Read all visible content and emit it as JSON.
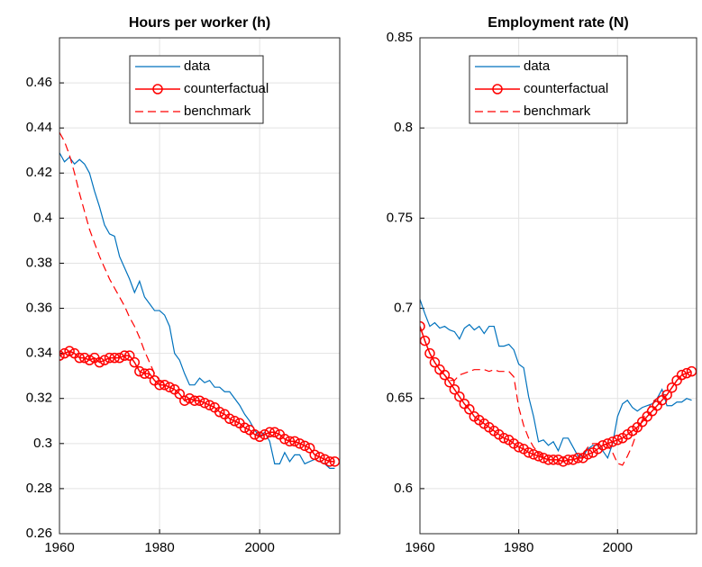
{
  "chart_data": [
    {
      "type": "line",
      "title": "Hours per worker (h)",
      "x": [
        1960,
        1961,
        1962,
        1963,
        1964,
        1965,
        1966,
        1967,
        1968,
        1969,
        1970,
        1971,
        1972,
        1973,
        1974,
        1975,
        1976,
        1977,
        1978,
        1979,
        1980,
        1981,
        1982,
        1983,
        1984,
        1985,
        1986,
        1987,
        1988,
        1989,
        1990,
        1991,
        1992,
        1993,
        1994,
        1995,
        1996,
        1997,
        1998,
        1999,
        2000,
        2001,
        2002,
        2003,
        2004,
        2005,
        2006,
        2007,
        2008,
        2009,
        2010,
        2011,
        2012,
        2013,
        2014,
        2015
      ],
      "series": [
        {
          "name": "data",
          "color": "#0072bd",
          "style": "solid",
          "marker": false,
          "values": [
            0.429,
            0.425,
            0.427,
            0.424,
            0.426,
            0.424,
            0.42,
            0.412,
            0.405,
            0.397,
            0.393,
            0.392,
            0.383,
            0.378,
            0.373,
            0.367,
            0.372,
            0.365,
            0.362,
            0.359,
            0.359,
            0.357,
            0.352,
            0.34,
            0.337,
            0.331,
            0.326,
            0.326,
            0.329,
            0.327,
            0.328,
            0.325,
            0.325,
            0.323,
            0.323,
            0.32,
            0.317,
            0.313,
            0.31,
            0.306,
            0.303,
            0.305,
            0.301,
            0.291,
            0.291,
            0.296,
            0.292,
            0.295,
            0.295,
            0.291,
            0.292,
            0.293,
            0.292,
            0.291,
            0.289,
            0.289
          ]
        },
        {
          "name": "counterfactual",
          "color": "#ff0000",
          "style": "solid",
          "marker": true,
          "values": [
            0.339,
            0.34,
            0.341,
            0.34,
            0.338,
            0.338,
            0.337,
            0.338,
            0.336,
            0.337,
            0.338,
            0.338,
            0.338,
            0.339,
            0.339,
            0.336,
            0.332,
            0.331,
            0.331,
            0.328,
            0.326,
            0.326,
            0.325,
            0.324,
            0.322,
            0.319,
            0.32,
            0.319,
            0.319,
            0.318,
            0.317,
            0.316,
            0.314,
            0.313,
            0.311,
            0.31,
            0.309,
            0.307,
            0.306,
            0.304,
            0.303,
            0.304,
            0.305,
            0.305,
            0.304,
            0.302,
            0.301,
            0.301,
            0.3,
            0.299,
            0.298,
            0.295,
            0.294,
            0.293,
            0.292,
            0.292
          ]
        },
        {
          "name": "benchmark",
          "color": "#ff0000",
          "style": "dashed",
          "marker": false,
          "values": [
            0.438,
            0.434,
            0.428,
            0.42,
            0.411,
            0.403,
            0.395,
            0.389,
            0.383,
            0.378,
            0.373,
            0.369,
            0.365,
            0.361,
            0.356,
            0.352,
            0.347,
            0.341,
            0.336,
            0.331,
            0.328,
            0.326,
            0.325,
            0.324,
            0.322,
            0.319,
            0.32,
            0.319,
            0.319,
            0.318,
            0.317,
            0.316,
            0.314,
            0.313,
            0.311,
            0.31,
            0.309,
            0.307,
            0.306,
            0.304,
            0.303,
            0.304,
            0.305,
            0.305,
            0.304,
            0.302,
            0.301,
            0.301,
            0.3,
            0.299,
            0.298,
            0.295,
            0.294,
            0.293,
            0.292,
            0.292
          ]
        }
      ],
      "xlim": [
        1960,
        2016
      ],
      "xticks": [
        1960,
        1980,
        2000
      ],
      "ylim": [
        0.26,
        0.48
      ],
      "yticks": [
        0.26,
        0.28,
        {
          "value": 0.3,
          "label": "0.3"
        },
        0.32,
        0.34,
        0.36,
        0.38,
        {
          "value": 0.4,
          "label": "0.4"
        },
        0.42,
        0.44,
        0.46
      ],
      "grid": true,
      "legend": "top"
    },
    {
      "type": "line",
      "title": "Employment rate (N)",
      "x": [
        1960,
        1961,
        1962,
        1963,
        1964,
        1965,
        1966,
        1967,
        1968,
        1969,
        1970,
        1971,
        1972,
        1973,
        1974,
        1975,
        1976,
        1977,
        1978,
        1979,
        1980,
        1981,
        1982,
        1983,
        1984,
        1985,
        1986,
        1987,
        1988,
        1989,
        1990,
        1991,
        1992,
        1993,
        1994,
        1995,
        1996,
        1997,
        1998,
        1999,
        2000,
        2001,
        2002,
        2003,
        2004,
        2005,
        2006,
        2007,
        2008,
        2009,
        2010,
        2011,
        2012,
        2013,
        2014,
        2015
      ],
      "series": [
        {
          "name": "data",
          "color": "#0072bd",
          "style": "solid",
          "marker": false,
          "values": [
            0.705,
            0.697,
            0.69,
            0.692,
            0.689,
            0.69,
            0.688,
            0.687,
            0.683,
            0.689,
            0.691,
            0.688,
            0.69,
            0.686,
            0.69,
            0.69,
            0.679,
            0.679,
            0.68,
            0.677,
            0.669,
            0.667,
            0.651,
            0.64,
            0.626,
            0.627,
            0.624,
            0.626,
            0.621,
            0.628,
            0.628,
            0.623,
            0.618,
            0.618,
            0.622,
            0.624,
            0.624,
            0.621,
            0.617,
            0.625,
            0.64,
            0.647,
            0.649,
            0.645,
            0.643,
            0.645,
            0.646,
            0.647,
            0.65,
            0.655,
            0.646,
            0.646,
            0.648,
            0.648,
            0.65,
            0.649
          ]
        },
        {
          "name": "counterfactual",
          "color": "#ff0000",
          "style": "solid",
          "marker": true,
          "values": [
            0.69,
            0.682,
            0.675,
            0.67,
            0.666,
            0.663,
            0.659,
            0.655,
            0.651,
            0.647,
            0.644,
            0.64,
            0.638,
            0.636,
            0.634,
            0.632,
            0.63,
            0.628,
            0.627,
            0.625,
            0.623,
            0.622,
            0.62,
            0.619,
            0.618,
            0.617,
            0.616,
            0.616,
            0.616,
            0.615,
            0.616,
            0.616,
            0.617,
            0.617,
            0.619,
            0.62,
            0.622,
            0.624,
            0.625,
            0.626,
            0.627,
            0.628,
            0.63,
            0.632,
            0.634,
            0.637,
            0.64,
            0.643,
            0.646,
            0.649,
            0.652,
            0.656,
            0.66,
            0.663,
            0.664,
            0.665
          ]
        },
        {
          "name": "benchmark",
          "color": "#ff0000",
          "style": "dashed",
          "marker": false,
          "values": [
            0.69,
            0.682,
            0.675,
            0.67,
            0.666,
            0.663,
            0.66,
            0.66,
            0.663,
            0.664,
            0.665,
            0.666,
            0.666,
            0.666,
            0.665,
            0.666,
            0.665,
            0.665,
            0.665,
            0.662,
            0.645,
            0.635,
            0.628,
            0.623,
            0.62,
            0.617,
            0.616,
            0.616,
            0.616,
            0.615,
            0.616,
            0.616,
            0.617,
            0.619,
            0.623,
            0.625,
            0.625,
            0.625,
            0.624,
            0.62,
            0.614,
            0.613,
            0.618,
            0.624,
            0.632,
            0.638,
            0.643,
            0.648,
            0.65,
            0.652,
            0.652,
            0.656,
            0.66,
            0.663,
            0.664,
            0.665
          ]
        }
      ],
      "xlim": [
        1960,
        2016
      ],
      "xticks": [
        1960,
        1980,
        2000
      ],
      "ylim": [
        0.575,
        0.85
      ],
      "yticks": [
        {
          "value": 0.6,
          "label": "0.6"
        },
        0.65,
        {
          "value": 0.7,
          "label": "0.7"
        },
        0.75,
        {
          "value": 0.8,
          "label": "0.8"
        },
        0.85
      ],
      "grid": true,
      "legend": "top"
    }
  ]
}
